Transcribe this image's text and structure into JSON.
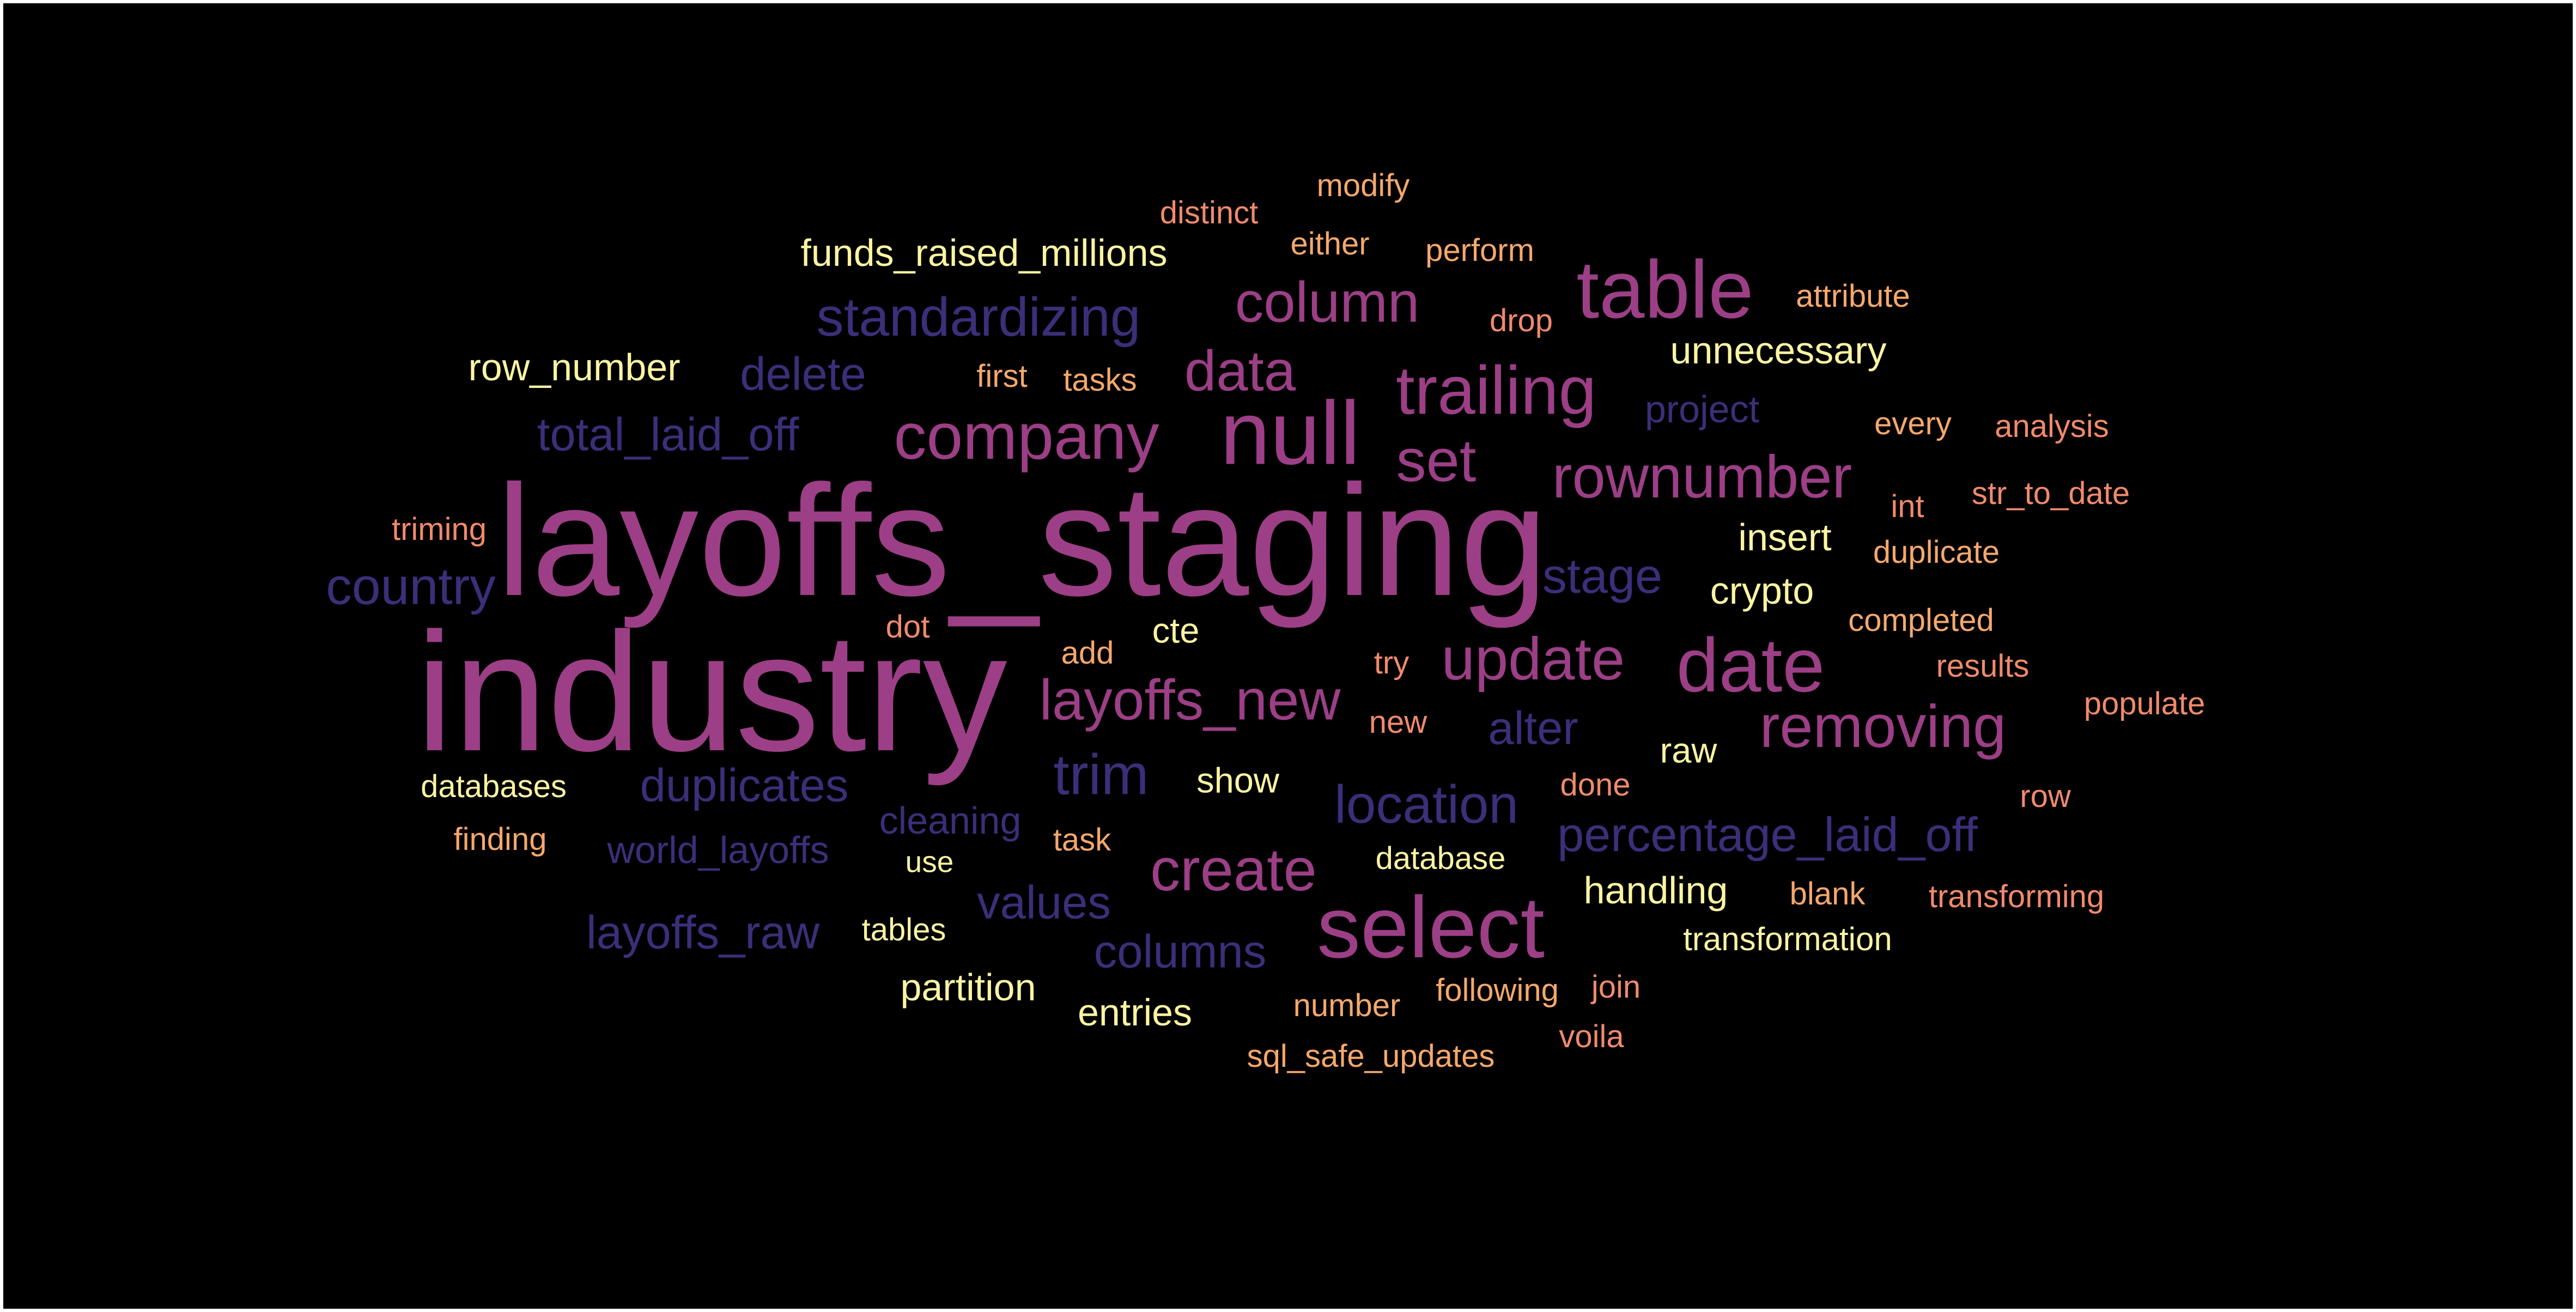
{
  "palette": {
    "background": "#000000",
    "indigo": "#3B2F7A",
    "magenta": "#9C3F86",
    "salmon": "#F08A6C",
    "orange": "#F5A86C",
    "cream": "#FBF4A2"
  },
  "words": [
    {
      "text": "layoffs_staging",
      "color": "#9C3F86"
    },
    {
      "text": "industry",
      "color": "#9C3F86"
    },
    {
      "text": "table",
      "color": "#9C3F86"
    },
    {
      "text": "null",
      "color": "#9C3F86"
    },
    {
      "text": "select",
      "color": "#9C3F86"
    },
    {
      "text": "date",
      "color": "#9C3F86"
    },
    {
      "text": "trailing",
      "color": "#9C3F86"
    },
    {
      "text": "company",
      "color": "#9C3F86"
    },
    {
      "text": "removing",
      "color": "#9C3F86"
    },
    {
      "text": "rownumber",
      "color": "#9C3F86"
    },
    {
      "text": "column",
      "color": "#9C3F86"
    },
    {
      "text": "update",
      "color": "#9C3F86"
    },
    {
      "text": "create",
      "color": "#9C3F86"
    },
    {
      "text": "layoffs_new",
      "color": "#9C3F86"
    },
    {
      "text": "data",
      "color": "#9C3F86"
    },
    {
      "text": "set",
      "color": "#9C3F86"
    },
    {
      "text": "standardizing",
      "color": "#3B2F7A"
    },
    {
      "text": "country",
      "color": "#3B2F7A"
    },
    {
      "text": "stage",
      "color": "#3B2F7A"
    },
    {
      "text": "trim",
      "color": "#3B2F7A"
    },
    {
      "text": "location",
      "color": "#3B2F7A"
    },
    {
      "text": "percentage_laid_off",
      "color": "#3B2F7A"
    },
    {
      "text": "duplicates",
      "color": "#3B2F7A"
    },
    {
      "text": "total_laid_off",
      "color": "#3B2F7A"
    },
    {
      "text": "delete",
      "color": "#3B2F7A"
    },
    {
      "text": "alter",
      "color": "#3B2F7A"
    },
    {
      "text": "values",
      "color": "#3B2F7A"
    },
    {
      "text": "columns",
      "color": "#3B2F7A"
    },
    {
      "text": "layoffs_raw",
      "color": "#3B2F7A"
    },
    {
      "text": "world_layoffs",
      "color": "#3B2F7A"
    },
    {
      "text": "cleaning",
      "color": "#3B2F7A"
    },
    {
      "text": "project",
      "color": "#3B2F7A"
    },
    {
      "text": "funds_raised_millions",
      "color": "#FBF4A2"
    },
    {
      "text": "row_number",
      "color": "#FBF4A2"
    },
    {
      "text": "unnecessary",
      "color": "#FBF4A2"
    },
    {
      "text": "insert",
      "color": "#FBF4A2"
    },
    {
      "text": "crypto",
      "color": "#FBF4A2"
    },
    {
      "text": "cte",
      "color": "#FBF4A2"
    },
    {
      "text": "raw",
      "color": "#FBF4A2"
    },
    {
      "text": "show",
      "color": "#FBF4A2"
    },
    {
      "text": "handling",
      "color": "#FBF4A2"
    },
    {
      "text": "transformation",
      "color": "#FBF4A2"
    },
    {
      "text": "partition",
      "color": "#FBF4A2"
    },
    {
      "text": "entries",
      "color": "#FBF4A2"
    },
    {
      "text": "databases",
      "color": "#FBF4A2"
    },
    {
      "text": "database",
      "color": "#FBF4A2"
    },
    {
      "text": "use",
      "color": "#FBF4A2"
    },
    {
      "text": "tables",
      "color": "#FBF4A2"
    },
    {
      "text": "modify",
      "color": "#F5A86C"
    },
    {
      "text": "distinct",
      "color": "#F08A6C"
    },
    {
      "text": "either",
      "color": "#F5A86C"
    },
    {
      "text": "perform",
      "color": "#F5A86C"
    },
    {
      "text": "attribute",
      "color": "#F5A86C"
    },
    {
      "text": "drop",
      "color": "#F08A6C"
    },
    {
      "text": "first",
      "color": "#F5A86C"
    },
    {
      "text": "tasks",
      "color": "#F5A86C"
    },
    {
      "text": "every",
      "color": "#F5A86C"
    },
    {
      "text": "analysis",
      "color": "#F08A6C"
    },
    {
      "text": "int",
      "color": "#F08A6C"
    },
    {
      "text": "str_to_date",
      "color": "#F08A6C"
    },
    {
      "text": "triming",
      "color": "#F08A6C"
    },
    {
      "text": "duplicate",
      "color": "#F5A86C"
    },
    {
      "text": "dot",
      "color": "#F08A6C"
    },
    {
      "text": "add",
      "color": "#F5A86C"
    },
    {
      "text": "completed",
      "color": "#F5A86C"
    },
    {
      "text": "try",
      "color": "#F08A6C"
    },
    {
      "text": "results",
      "color": "#F08A6C"
    },
    {
      "text": "new",
      "color": "#F08A6C"
    },
    {
      "text": "populate",
      "color": "#F08A6C"
    },
    {
      "text": "done",
      "color": "#F08A6C"
    },
    {
      "text": "row",
      "color": "#F08A6C"
    },
    {
      "text": "finding",
      "color": "#F5A86C"
    },
    {
      "text": "task",
      "color": "#F5A86C"
    },
    {
      "text": "blank",
      "color": "#F5A86C"
    },
    {
      "text": "transforming",
      "color": "#F08A6C"
    },
    {
      "text": "number",
      "color": "#F5A86C"
    },
    {
      "text": "following",
      "color": "#F5A86C"
    },
    {
      "text": "join",
      "color": "#F08A6C"
    },
    {
      "text": "voila",
      "color": "#F08A6C"
    },
    {
      "text": "sql_safe_updates",
      "color": "#F5A86C"
    }
  ]
}
